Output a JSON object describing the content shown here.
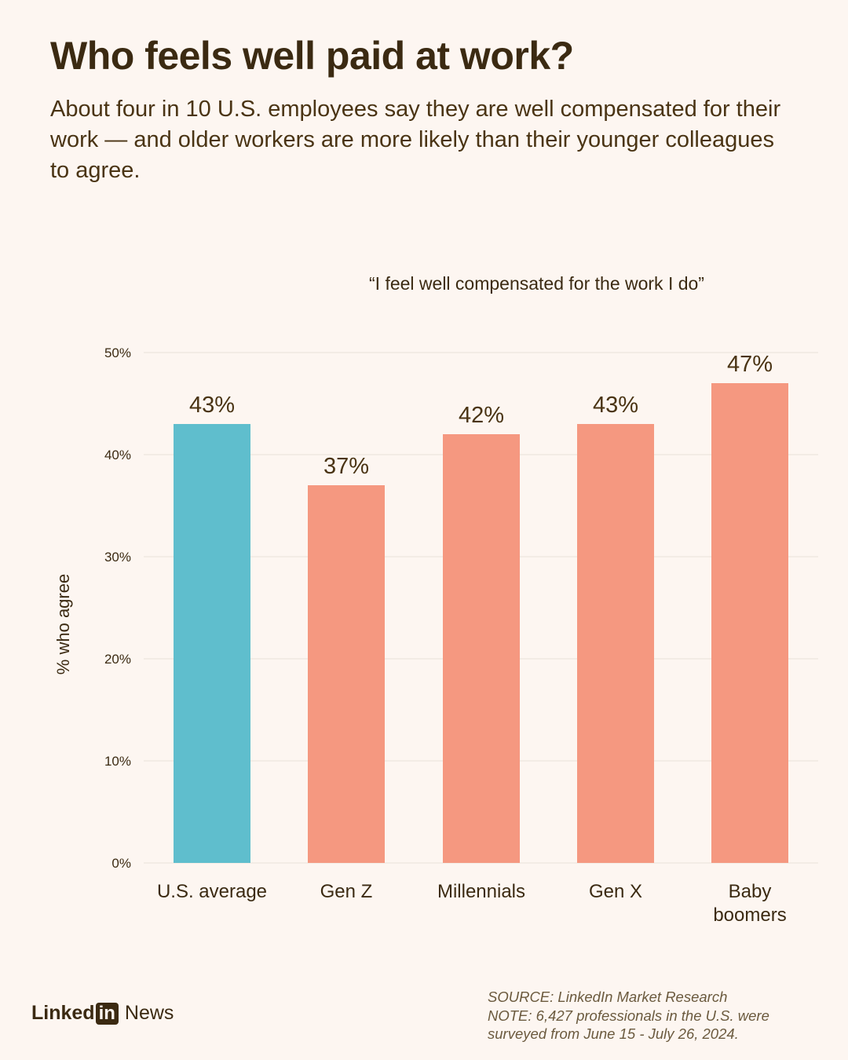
{
  "header": {
    "title": "Who feels well paid at work?",
    "subtitle": "About four in 10 U.S. employees say they are well compensated for their work — and older workers are more likely than their younger colleagues to agree."
  },
  "chart_data": {
    "type": "bar",
    "title": "“I feel well compensated for the work I do”",
    "ylabel": "% who agree",
    "ylim": [
      0,
      50
    ],
    "yticks": [
      "0%",
      "10%",
      "20%",
      "30%",
      "40%",
      "50%"
    ],
    "ytick_values": [
      0,
      10,
      20,
      30,
      40,
      50
    ],
    "categories": [
      [
        "U.S. average"
      ],
      [
        "Gen Z"
      ],
      [
        "Millennials"
      ],
      [
        "Gen X"
      ],
      [
        "Baby",
        "boomers"
      ]
    ],
    "values": [
      43,
      37,
      42,
      43,
      47
    ],
    "value_labels": [
      "43%",
      "37%",
      "42%",
      "43%",
      "47%"
    ],
    "bar_colors": [
      "#5fbecd",
      "#f59880",
      "#f59880",
      "#f59880",
      "#f59880"
    ],
    "grid": true
  },
  "footer": {
    "source_line1": "SOURCE: LinkedIn Market Research",
    "source_line2": "NOTE: 6,427 professionals in the U.S. were",
    "source_line3": "surveyed from June 15 - July 26, 2024.",
    "logo_linked": "Linked",
    "logo_in": "in",
    "logo_news": "News"
  }
}
